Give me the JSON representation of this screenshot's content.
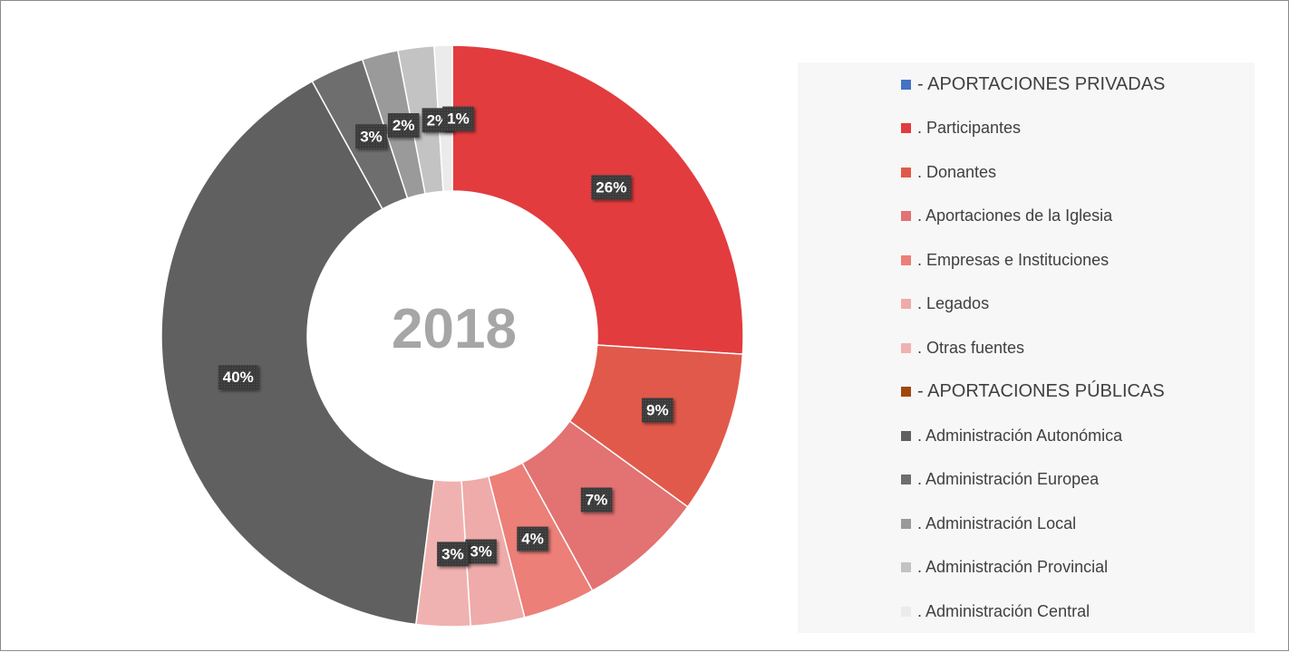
{
  "chart_data": {
    "type": "donut",
    "title": "",
    "center_label": "2018",
    "slices": [
      {
        "name": ". Participantes",
        "value": 26,
        "label": "26%",
        "color": "#e23c3f"
      },
      {
        "name": ". Donantes",
        "value": 9,
        "label": "9%",
        "color": "#e1594a"
      },
      {
        "name": ". Aportaciones de la Iglesia",
        "value": 7,
        "label": "7%",
        "color": "#e37272"
      },
      {
        "name": ". Empresas e Instituciones",
        "value": 4,
        "label": "4%",
        "color": "#ec7f78"
      },
      {
        "name": ". Legados",
        "value": 3,
        "label": "3%",
        "color": "#efaba9"
      },
      {
        "name": ". Otras fuentes",
        "value": 3,
        "label": "3%",
        "color": "#f0b2b0"
      },
      {
        "name": ". Administración Autonómica",
        "value": 40,
        "label": "40%",
        "color": "#606060"
      },
      {
        "name": ". Administración Europea",
        "value": 3,
        "label": "3%",
        "color": "#6e6e6e"
      },
      {
        "name": ". Administración Local",
        "value": 2,
        "label": "2%",
        "color": "#9a9a9a"
      },
      {
        "name": ". Administración Provincial",
        "value": 2,
        "label": "2%",
        "color": "#c3c3c3"
      },
      {
        "name": ". Administración Central",
        "value": 1,
        "label": "1%",
        "color": "#ebebeb"
      }
    ],
    "legend": {
      "position": "right",
      "items": [
        {
          "label": "- APORTACIONES PRIVADAS",
          "color": "#4472c4",
          "header": true
        },
        {
          "label": ". Participantes",
          "color": "#e23c3f"
        },
        {
          "label": ". Donantes",
          "color": "#e1594a"
        },
        {
          "label": ". Aportaciones de la Iglesia",
          "color": "#e37272"
        },
        {
          "label": ". Empresas e Instituciones",
          "color": "#ec7f78"
        },
        {
          "label": ". Legados",
          "color": "#efaba9"
        },
        {
          "label": ". Otras fuentes",
          "color": "#f0b2b0"
        },
        {
          "label": "- APORTACIONES PÚBLICAS",
          "color": "#9e480e",
          "header": true
        },
        {
          "label": ". Administración Autonómica",
          "color": "#606060"
        },
        {
          "label": ". Administración Europea",
          "color": "#6e6e6e"
        },
        {
          "label": ". Administración Local",
          "color": "#9a9a9a"
        },
        {
          "label": ". Administración Provincial",
          "color": "#c3c3c3"
        },
        {
          "label": ". Administración Central",
          "color": "#ebebeb"
        }
      ]
    }
  }
}
